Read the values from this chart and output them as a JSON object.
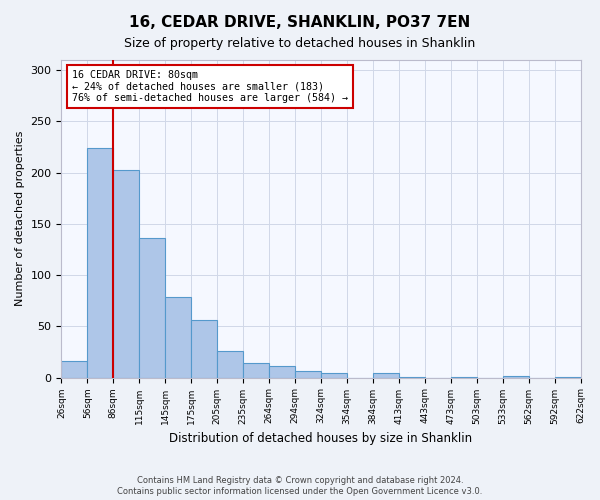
{
  "title": "16, CEDAR DRIVE, SHANKLIN, PO37 7EN",
  "subtitle": "Size of property relative to detached houses in Shanklin",
  "xlabel": "Distribution of detached houses by size in Shanklin",
  "ylabel": "Number of detached properties",
  "bar_values": [
    16,
    224,
    203,
    136,
    79,
    56,
    26,
    14,
    11,
    6,
    4,
    0,
    4,
    1,
    0,
    1,
    0,
    2,
    0,
    1
  ],
  "bin_labels": [
    "26sqm",
    "56sqm",
    "86sqm",
    "115sqm",
    "145sqm",
    "175sqm",
    "205sqm",
    "235sqm",
    "264sqm",
    "294sqm",
    "324sqm",
    "354sqm",
    "384sqm",
    "413sqm",
    "443sqm",
    "473sqm",
    "503sqm",
    "533sqm",
    "562sqm",
    "592sqm",
    "622sqm"
  ],
  "bar_color": "#aec6e8",
  "bar_edge_color": "#5599cc",
  "ylim": [
    0,
    310
  ],
  "yticks": [
    0,
    50,
    100,
    150,
    200,
    250,
    300
  ],
  "vline_x": 2.0,
  "vline_color": "#cc0000",
  "annotation_title": "16 CEDAR DRIVE: 80sqm",
  "annotation_line1": "← 24% of detached houses are smaller (183)",
  "annotation_line2": "76% of semi-detached houses are larger (584) →",
  "footer1": "Contains HM Land Registry data © Crown copyright and database right 2024.",
  "footer2": "Contains public sector information licensed under the Open Government Licence v3.0.",
  "bg_color": "#eef2f8",
  "plot_bg_color": "#f5f8ff",
  "grid_color": "#d0d8e8"
}
